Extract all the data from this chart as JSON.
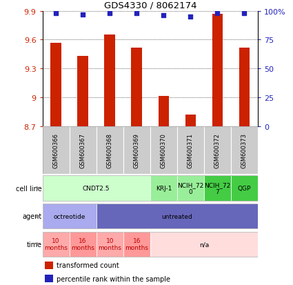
{
  "title": "GDS4330 / 8062174",
  "samples": [
    "GSM600366",
    "GSM600367",
    "GSM600368",
    "GSM600369",
    "GSM600370",
    "GSM600371",
    "GSM600372",
    "GSM600373"
  ],
  "bar_values": [
    9.57,
    9.43,
    9.65,
    9.52,
    9.02,
    8.82,
    9.87,
    9.52
  ],
  "dot_values": [
    98,
    97,
    98,
    98,
    96,
    95,
    98,
    98
  ],
  "ylim": [
    8.7,
    9.9
  ],
  "yticks_left": [
    8.7,
    9.0,
    9.3,
    9.6,
    9.9
  ],
  "ytick_labels_left": [
    "8.7",
    "9",
    "9.3",
    "9.6",
    "9.9"
  ],
  "right_yticks": [
    0,
    25,
    50,
    75,
    100
  ],
  "right_ylabels": [
    "0",
    "25",
    "50",
    "75",
    "100%"
  ],
  "bar_color": "#CC2200",
  "dot_color": "#2222BB",
  "cell_line_groups": [
    {
      "text": "CNDT2.5",
      "start": 0,
      "end": 4,
      "color": "#CCFFCC"
    },
    {
      "text": "KRJ-1",
      "start": 4,
      "end": 5,
      "color": "#99EE99"
    },
    {
      "text": "NCIH_72\n0",
      "start": 5,
      "end": 6,
      "color": "#99EE99"
    },
    {
      "text": "NCIH_72\n7",
      "start": 6,
      "end": 7,
      "color": "#44CC44"
    },
    {
      "text": "QGP",
      "start": 7,
      "end": 8,
      "color": "#44CC44"
    }
  ],
  "agent_groups": [
    {
      "text": "octreotide",
      "start": 0,
      "end": 2,
      "color": "#AAAAEE"
    },
    {
      "text": "untreated",
      "start": 2,
      "end": 8,
      "color": "#6666BB"
    }
  ],
  "time_groups": [
    {
      "text": "10\nmonths",
      "start": 0,
      "end": 1,
      "color": "#FFAAAA",
      "text_color": "#BB0000"
    },
    {
      "text": "16\nmonths",
      "start": 1,
      "end": 2,
      "color": "#FF9999",
      "text_color": "#BB0000"
    },
    {
      "text": "10\nmonths",
      "start": 2,
      "end": 3,
      "color": "#FFAAAA",
      "text_color": "#BB0000"
    },
    {
      "text": "16\nmonths",
      "start": 3,
      "end": 4,
      "color": "#FF9999",
      "text_color": "#BB0000"
    },
    {
      "text": "n/a",
      "start": 4,
      "end": 8,
      "color": "#FFDDDD",
      "text_color": "#000000"
    }
  ],
  "row_labels": [
    "cell line",
    "agent",
    "time"
  ],
  "legend_items": [
    {
      "color": "#CC2200",
      "label": "transformed count"
    },
    {
      "color": "#2222BB",
      "label": "percentile rank within the sample"
    }
  ],
  "sample_box_color": "#CCCCCC",
  "grid_color": "#000000",
  "ann_border_color": "#AAAAAA"
}
